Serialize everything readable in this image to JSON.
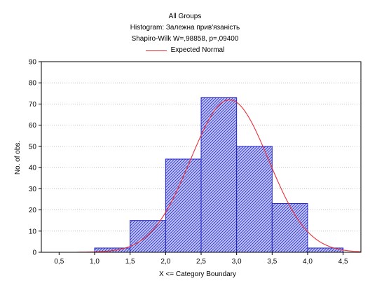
{
  "chart_data": {
    "type": "bar",
    "title": "All Groups",
    "subtitle": "Histogram: Залежна прив'язаність",
    "stats_line": "Shapiro-Wilk W=,98858, p=,09400",
    "legend": [
      "Expected Normal"
    ],
    "xlabel": "X <= Category Boundary",
    "ylabel": "No. of obs.",
    "xlim": [
      0.25,
      4.75
    ],
    "ylim": [
      0,
      90
    ],
    "x_ticks": [
      "0,5",
      "1,0",
      "1,5",
      "2,0",
      "2,5",
      "3,0",
      "3,5",
      "4,0",
      "4,5"
    ],
    "x_tick_values": [
      0.5,
      1.0,
      1.5,
      2.0,
      2.5,
      3.0,
      3.5,
      4.0,
      4.5
    ],
    "y_ticks": [
      "0",
      "10",
      "20",
      "30",
      "40",
      "50",
      "60",
      "70",
      "80",
      "90"
    ],
    "y_tick_values": [
      0,
      10,
      20,
      30,
      40,
      50,
      60,
      70,
      80,
      90
    ],
    "bins": [
      {
        "from": 0.5,
        "to": 1.0,
        "value": 0
      },
      {
        "from": 1.0,
        "to": 1.5,
        "value": 2
      },
      {
        "from": 1.5,
        "to": 2.0,
        "value": 15
      },
      {
        "from": 2.0,
        "to": 2.5,
        "value": 44
      },
      {
        "from": 2.5,
        "to": 3.0,
        "value": 73
      },
      {
        "from": 3.0,
        "to": 3.5,
        "value": 50
      },
      {
        "from": 3.5,
        "to": 4.0,
        "value": 23
      },
      {
        "from": 4.0,
        "to": 4.5,
        "value": 2
      }
    ],
    "expected_normal": {
      "mean": 2.9,
      "peak": 72,
      "sd": 0.55
    },
    "grid": true,
    "colors": {
      "bar_fill": "#c4c8f0",
      "bar_hatch": "#2a2fd2",
      "bar_edge": "#1f24c8",
      "curve": "#e8313b",
      "grid": "#9a9a9a"
    }
  }
}
